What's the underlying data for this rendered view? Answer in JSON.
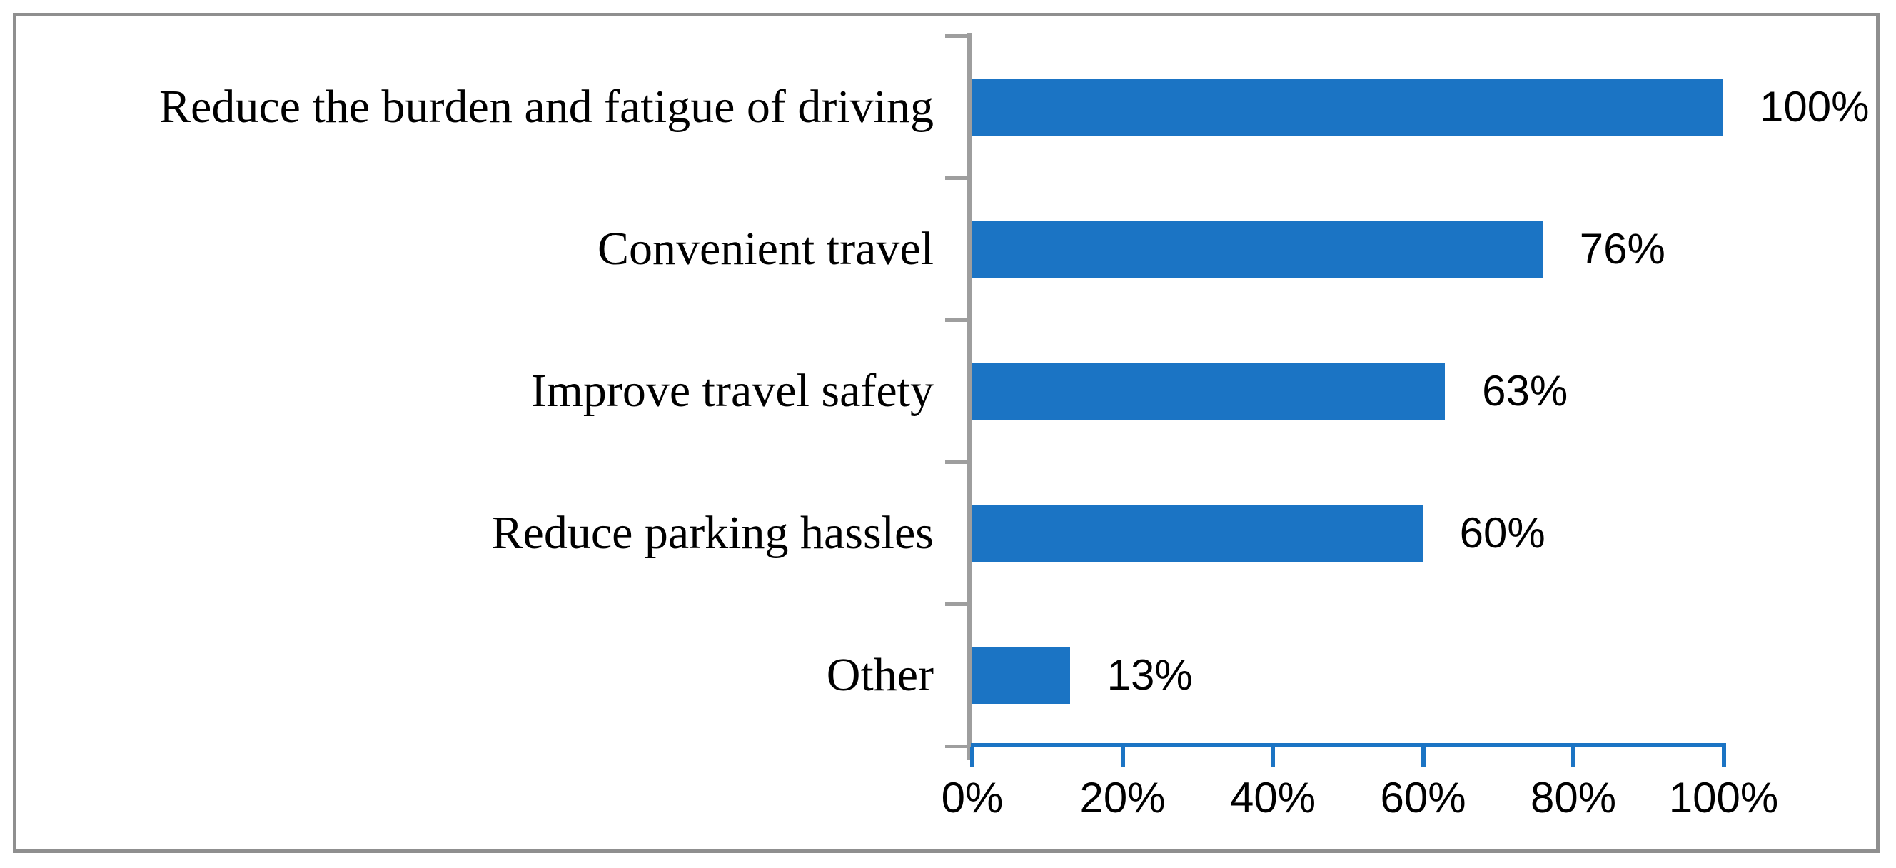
{
  "chart_data": {
    "type": "bar",
    "orientation": "horizontal",
    "categories": [
      "Reduce the burden and fatigue of driving",
      "Convenient travel",
      "Improve travel safety",
      "Reduce parking hassles",
      "Other"
    ],
    "values": [
      100,
      76,
      63,
      60,
      13
    ],
    "data_labels": [
      "100%",
      "76%",
      "63%",
      "60%",
      "13%"
    ],
    "x_tick_labels": [
      "0%",
      "20%",
      "40%",
      "60%",
      "80%",
      "100%"
    ],
    "xlim": [
      0,
      100
    ],
    "grid": false,
    "legend": "none",
    "data_labels_position": "outside-end",
    "bar_color": "#1b74c4",
    "value_axis_line_color": "#1b74c4",
    "category_axis_line_color": "#9e9e9e",
    "frame_border_color": "#8f8f8f",
    "text_color": "#000000"
  }
}
